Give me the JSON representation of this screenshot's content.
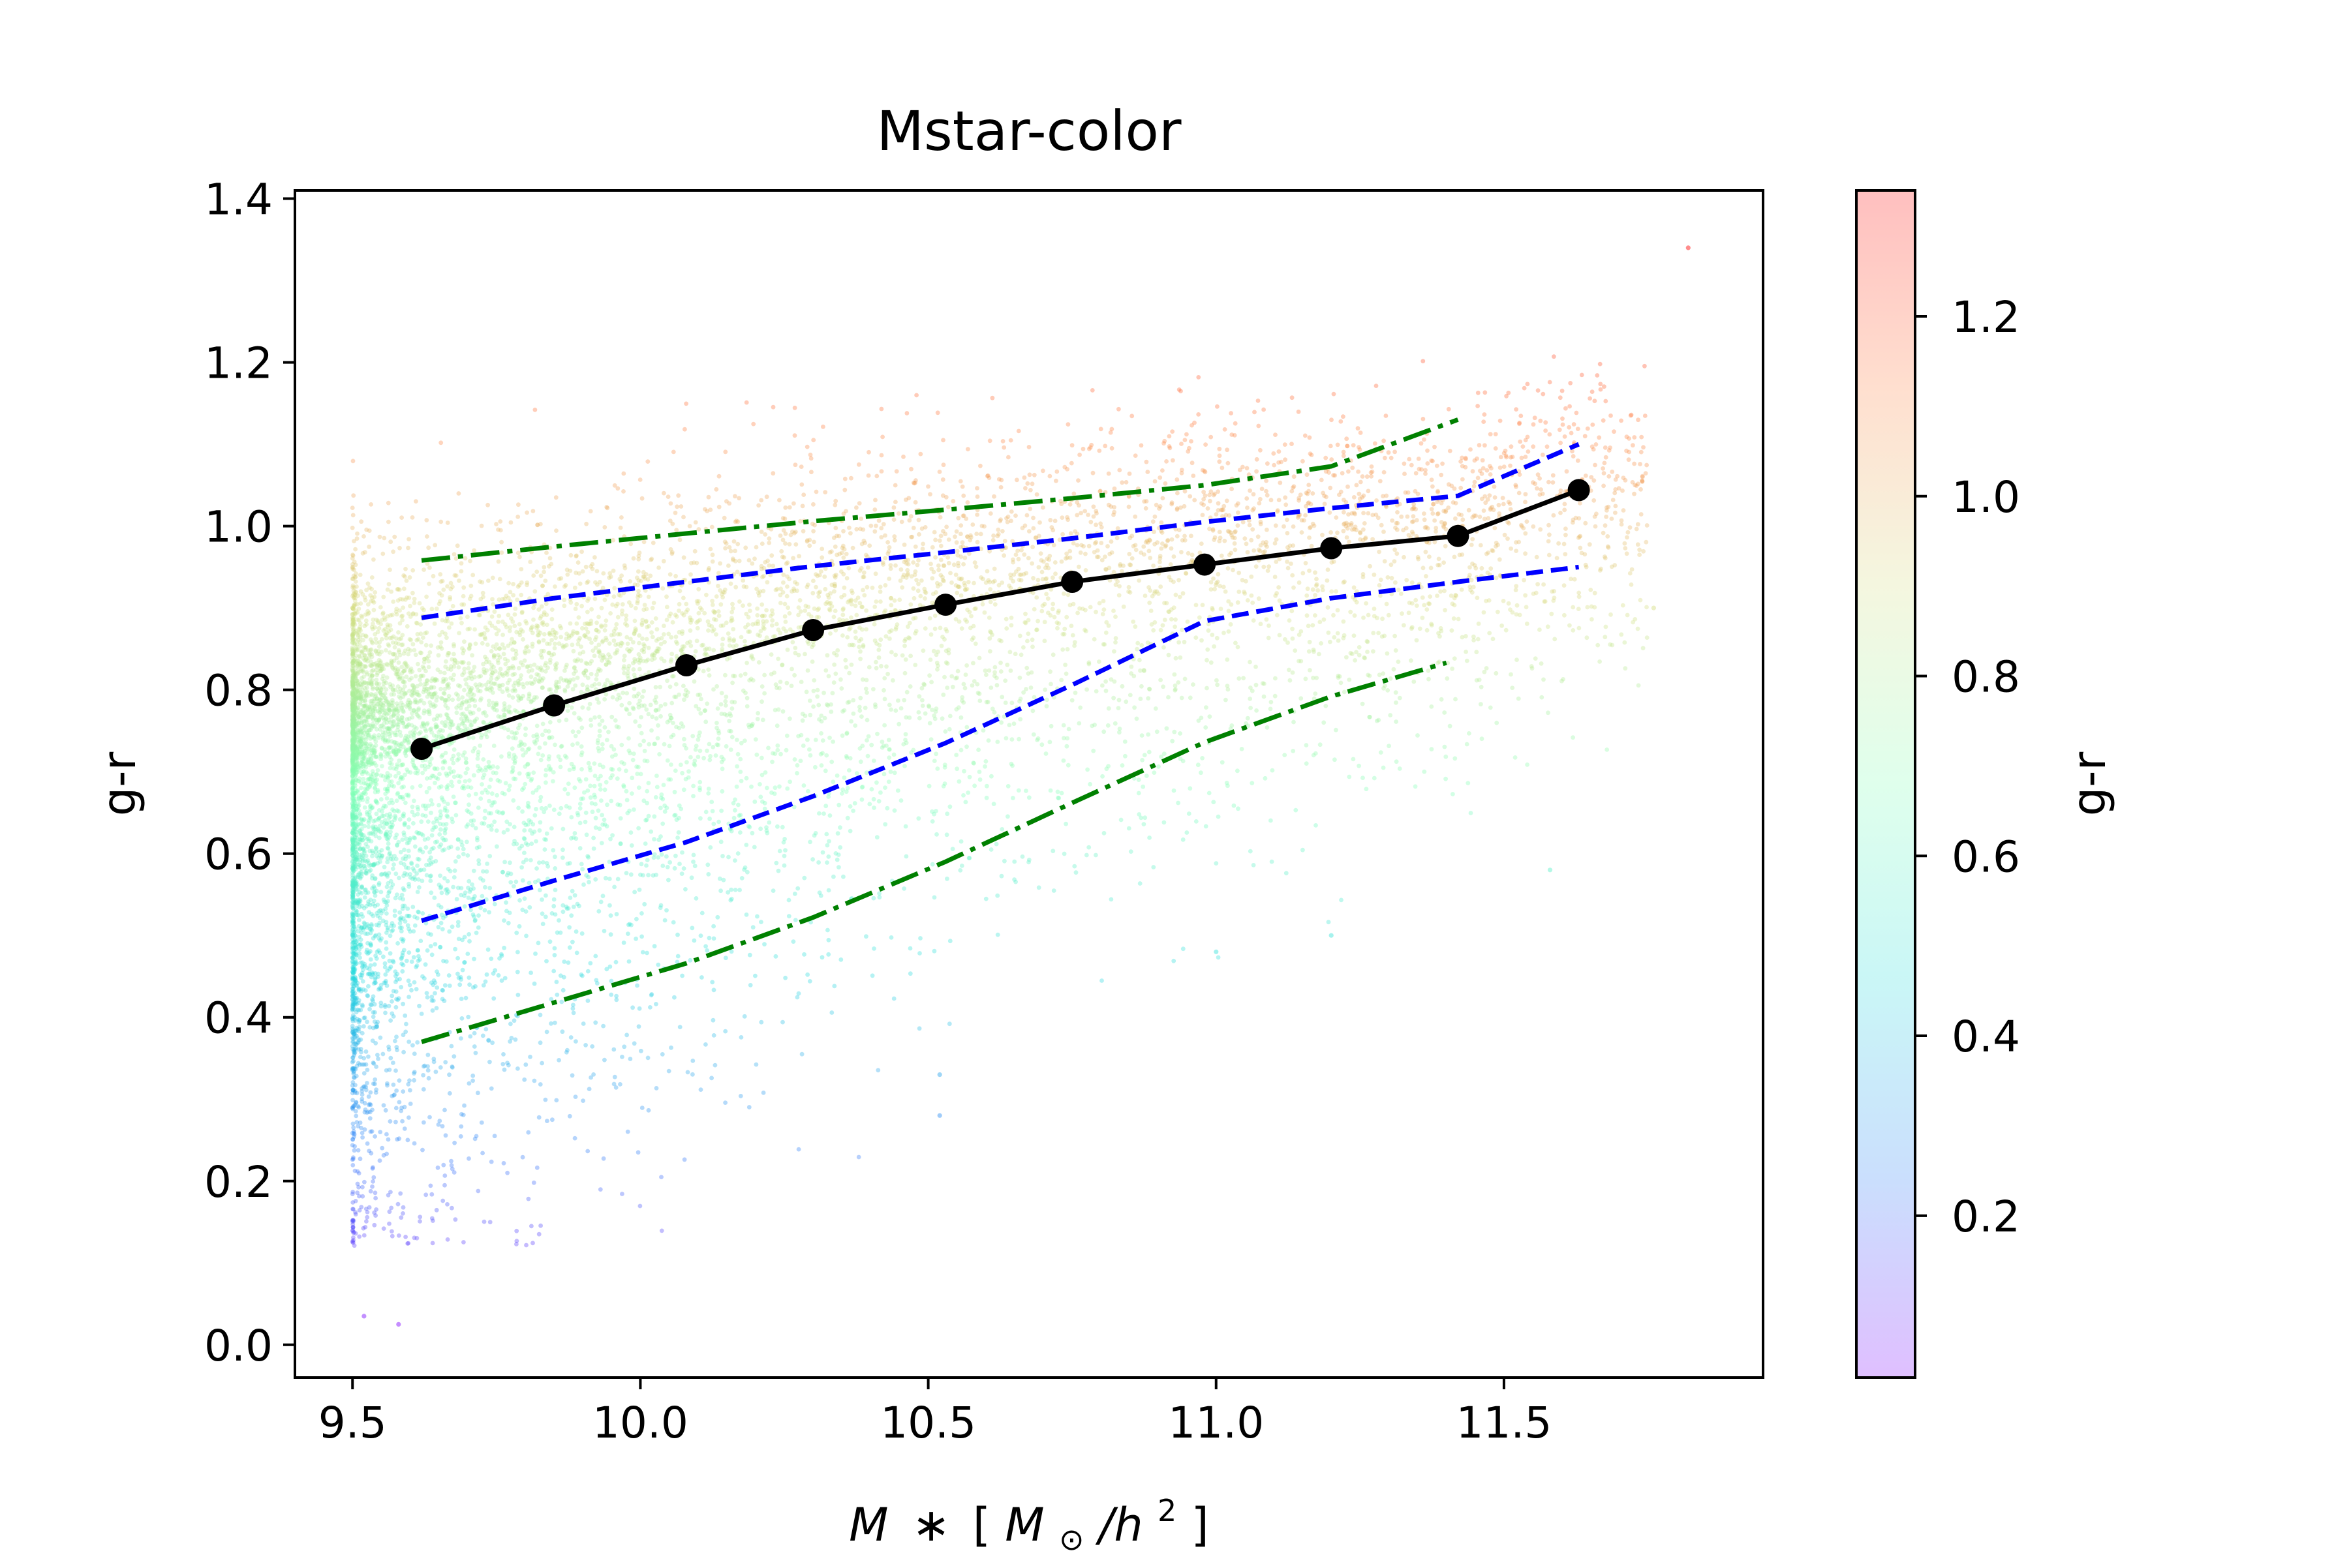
{
  "chart_data": {
    "type": "scatter",
    "title": "Mstar-color",
    "xlabel": {
      "base": "M",
      "op": "∗",
      "open": "[",
      "unit": "M",
      "sub": "⊙",
      "slash": "/h",
      "sup": "2",
      "close": "]"
    },
    "ylabel": "g-r",
    "xlim": [
      9.4,
      11.95
    ],
    "ylim": [
      -0.04,
      1.41
    ],
    "xticks": [
      "9.5",
      "10.0",
      "10.5",
      "11.0",
      "11.5"
    ],
    "yticks": [
      "0.0",
      "0.2",
      "0.4",
      "0.6",
      "0.8",
      "1.0",
      "1.2",
      "1.4"
    ],
    "grid": false,
    "colorbar": {
      "label": "g-r",
      "range": [
        0.02,
        1.34
      ],
      "ticks": [
        "0.2",
        "0.4",
        "0.6",
        "0.8",
        "1.0",
        "1.2"
      ],
      "stops": [
        "#8000ff",
        "#2c7ef7",
        "#2adddd",
        "#80ffb4",
        "#d4dd80",
        "#ff8040",
        "#ff0000"
      ]
    },
    "series": [
      {
        "style": "solid-markers",
        "color": "#000000",
        "x": [
          9.62,
          9.85,
          10.08,
          10.3,
          10.53,
          10.75,
          10.98,
          11.2,
          11.42,
          11.63
        ],
        "y": [
          0.728,
          0.781,
          0.83,
          0.873,
          0.904,
          0.932,
          0.953,
          0.973,
          0.988,
          1.044
        ]
      },
      {
        "style": "dashed",
        "color": "#0000ff",
        "x": [
          9.62,
          9.85,
          10.08,
          10.3,
          10.53,
          10.75,
          10.98,
          11.2,
          11.42,
          11.63
        ],
        "y": [
          0.888,
          0.912,
          0.932,
          0.951,
          0.968,
          0.985,
          1.005,
          1.022,
          1.037,
          1.1
        ]
      },
      {
        "style": "dashed",
        "color": "#0000ff",
        "x": [
          9.62,
          9.85,
          10.08,
          10.3,
          10.53,
          10.75,
          10.98,
          11.2,
          11.42,
          11.63
        ],
        "y": [
          0.518,
          0.567,
          0.614,
          0.67,
          0.735,
          0.806,
          0.884,
          0.912,
          0.932,
          0.95
        ]
      },
      {
        "style": "dashdot",
        "color": "#008000",
        "x": [
          9.62,
          9.85,
          10.08,
          10.3,
          10.53,
          10.75,
          10.98,
          11.2,
          11.42
        ],
        "y": [
          0.958,
          0.975,
          0.991,
          1.006,
          1.02,
          1.034,
          1.05,
          1.073,
          1.13
        ]
      },
      {
        "style": "dashdot",
        "color": "#008000",
        "x": [
          9.62,
          9.85,
          10.08,
          10.3,
          10.53,
          10.75,
          10.98,
          11.2,
          11.4
        ],
        "y": [
          0.37,
          0.418,
          0.466,
          0.522,
          0.59,
          0.662,
          0.736,
          0.792,
          0.833
        ]
      }
    ],
    "scatter_cloud": {
      "points": 9000,
      "x_min": 9.5,
      "outliers": [
        [
          9.52,
          0.035
        ],
        [
          9.58,
          0.025
        ],
        [
          11.82,
          1.34
        ],
        [
          11.58,
          0.58
        ],
        [
          11.2,
          0.5
        ],
        [
          11.0,
          0.48
        ],
        [
          10.52,
          0.28
        ],
        [
          10.52,
          0.33
        ],
        [
          11.76,
          0.9
        ]
      ]
    }
  }
}
